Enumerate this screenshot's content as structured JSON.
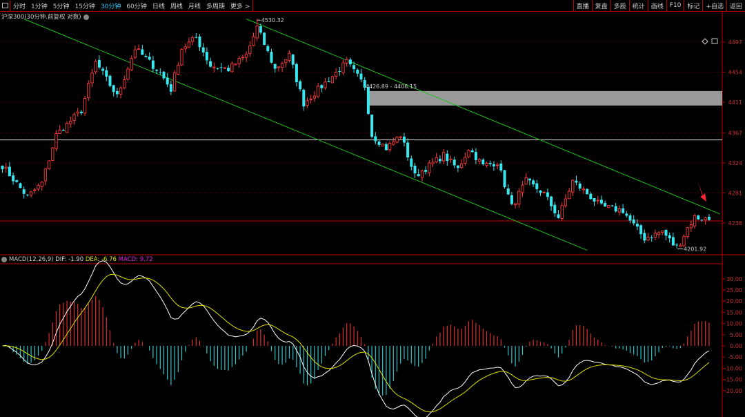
{
  "toolbar": {
    "periods": [
      "分时",
      "1分钟",
      "5分钟",
      "15分钟",
      "30分钟",
      "60分钟",
      "日线",
      "周线",
      "月线",
      "多周期",
      "更多 >"
    ],
    "active_period": "30分钟",
    "right_buttons": [
      "直播",
      "复盘",
      "多股",
      "统计",
      "画线",
      "F10",
      "标记",
      "+自选",
      "返回"
    ]
  },
  "title": "沪深300(30分钟.前复权 对数)",
  "macd_header": {
    "name": "MACD(12,26,9)",
    "dif": "DIF: -1.90",
    "dea": "DEA: -6.76",
    "macd": "MACD: 9.72"
  },
  "colors": {
    "up": "#ff3b3b",
    "down": "#38e8f0",
    "trend": "#1fbf1f",
    "dif": "#ffffff",
    "dea": "#e0e000",
    "grid": "#6a0000",
    "axis": "#c33"
  },
  "chart_data": [
    {
      "type": "candlestick",
      "title": "沪深300(30分钟.前复权 对数)",
      "ylim": [
        4190,
        4540
      ],
      "y_ticks": [
        4497,
        4454,
        4411,
        4367,
        4324,
        4281,
        4238
      ],
      "y_tick_labels": [
        "4497",
        "4454",
        "4411",
        "4367",
        "4324",
        "4281",
        "4238"
      ],
      "candle_count": 198,
      "close_waypoints": [
        [
          0,
          4320
        ],
        [
          7,
          4275
        ],
        [
          11,
          4295
        ],
        [
          15,
          4364
        ],
        [
          22,
          4399
        ],
        [
          26,
          4468
        ],
        [
          32,
          4419
        ],
        [
          37,
          4488
        ],
        [
          44,
          4453
        ],
        [
          47,
          4429
        ],
        [
          50,
          4488
        ],
        [
          54,
          4503
        ],
        [
          58,
          4463
        ],
        [
          63,
          4458
        ],
        [
          68,
          4478
        ],
        [
          71,
          4518
        ],
        [
          76,
          4458
        ],
        [
          80,
          4478
        ],
        [
          84,
          4409
        ],
        [
          88,
          4429
        ],
        [
          92,
          4448
        ],
        [
          96,
          4468
        ],
        [
          101,
          4434
        ],
        [
          103,
          4364
        ],
        [
          107,
          4345
        ],
        [
          111,
          4364
        ],
        [
          115,
          4305
        ],
        [
          123,
          4335
        ],
        [
          127,
          4315
        ],
        [
          130,
          4345
        ],
        [
          134,
          4320
        ],
        [
          138,
          4325
        ],
        [
          142,
          4261
        ],
        [
          146,
          4298
        ],
        [
          151,
          4280
        ],
        [
          155,
          4246
        ],
        [
          159,
          4298
        ],
        [
          163,
          4280
        ],
        [
          167,
          4261
        ],
        [
          173,
          4256
        ],
        [
          175,
          4241
        ],
        [
          179,
          4216
        ],
        [
          184,
          4226
        ],
        [
          188,
          4201
        ],
        [
          191,
          4231
        ],
        [
          193,
          4246
        ],
        [
          197,
          4243
        ]
      ],
      "annotations": {
        "high_label": "4530.32",
        "high_index": 71,
        "high_value": 4530.32,
        "low_label": "4201.92",
        "low_index": 188,
        "low_value": 4201.92,
        "zone_label": "4426.89 - 4406.15",
        "zone": [
          4406.15,
          4426.89
        ],
        "zone_start_index": 102,
        "horizontal_white": 4357,
        "horizontal_red": 4241,
        "trendlines": [
          [
            [
              6,
              4530
            ],
            [
              163,
              4199
            ]
          ],
          [
            [
              68,
              4530
            ],
            [
              200,
              4251
            ]
          ]
        ],
        "arrow_index": 193
      }
    },
    {
      "type": "macd",
      "params": [
        12,
        26,
        9
      ],
      "ylim": [
        -33,
        37
      ],
      "y_ticks": [
        30,
        25,
        20,
        15,
        10,
        5,
        0,
        -5,
        -10,
        -15,
        -20
      ],
      "y_tick_labels": [
        "30.00",
        "25.00",
        "20.00",
        "15.00",
        "10.00",
        "5.00",
        "0.00",
        "-5.00",
        "-10.00",
        "-15.00",
        "-20.00"
      ],
      "series": [
        {
          "name": "DIF",
          "value": -1.9
        },
        {
          "name": "DEA",
          "value": -6.76
        },
        {
          "name": "MACD",
          "value": 9.72
        }
      ]
    }
  ]
}
